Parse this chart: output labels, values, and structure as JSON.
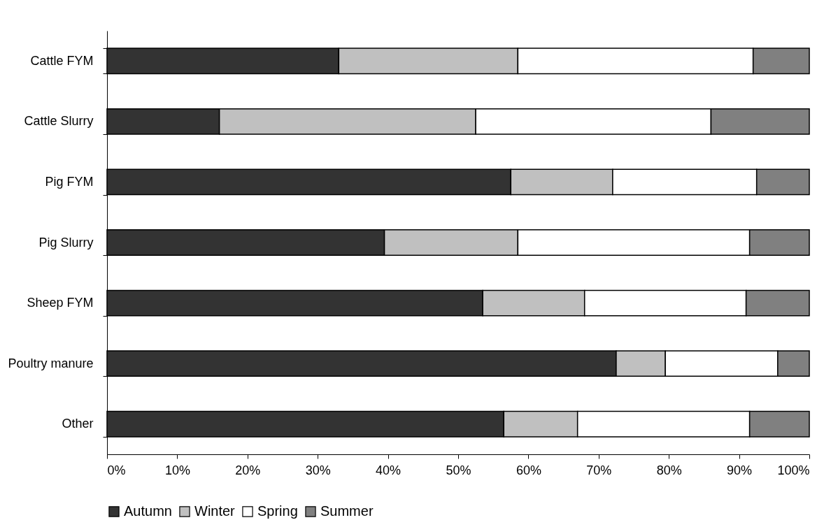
{
  "chart_data": {
    "type": "bar",
    "orientation": "horizontal",
    "stacked": true,
    "categories": [
      "Cattle FYM",
      "Cattle Slurry",
      "Pig FYM",
      "Pig Slurry",
      "Sheep FYM",
      "Poultry manure",
      "Other"
    ],
    "series": [
      {
        "name": "Autumn",
        "color": "#333333",
        "values": [
          33,
          16,
          57.5,
          39.5,
          53.5,
          72.5,
          56.5
        ]
      },
      {
        "name": "Winter",
        "color": "#c0c0c0",
        "values": [
          25.5,
          36.5,
          14.5,
          19,
          14.5,
          7,
          10.5
        ]
      },
      {
        "name": "Spring",
        "color": "#ffffff",
        "values": [
          33.5,
          33.5,
          20.5,
          33,
          23,
          16,
          24.5
        ]
      },
      {
        "name": "Summer",
        "color": "#808080",
        "values": [
          8,
          14,
          7.5,
          8.5,
          9,
          4.5,
          8.5
        ]
      }
    ],
    "xlim": [
      0,
      100
    ],
    "xticks": [
      {
        "value": 0,
        "label": "0%"
      },
      {
        "value": 10,
        "label": "10%"
      },
      {
        "value": 20,
        "label": "20%"
      },
      {
        "value": 30,
        "label": "30%"
      },
      {
        "value": 40,
        "label": "40%"
      },
      {
        "value": 50,
        "label": "50%"
      },
      {
        "value": 60,
        "label": "60%"
      },
      {
        "value": 70,
        "label": "70%"
      },
      {
        "value": 80,
        "label": "80%"
      },
      {
        "value": 90,
        "label": "90%"
      },
      {
        "value": 100,
        "label": "100%"
      }
    ],
    "grid": false,
    "legend": "bottom"
  }
}
